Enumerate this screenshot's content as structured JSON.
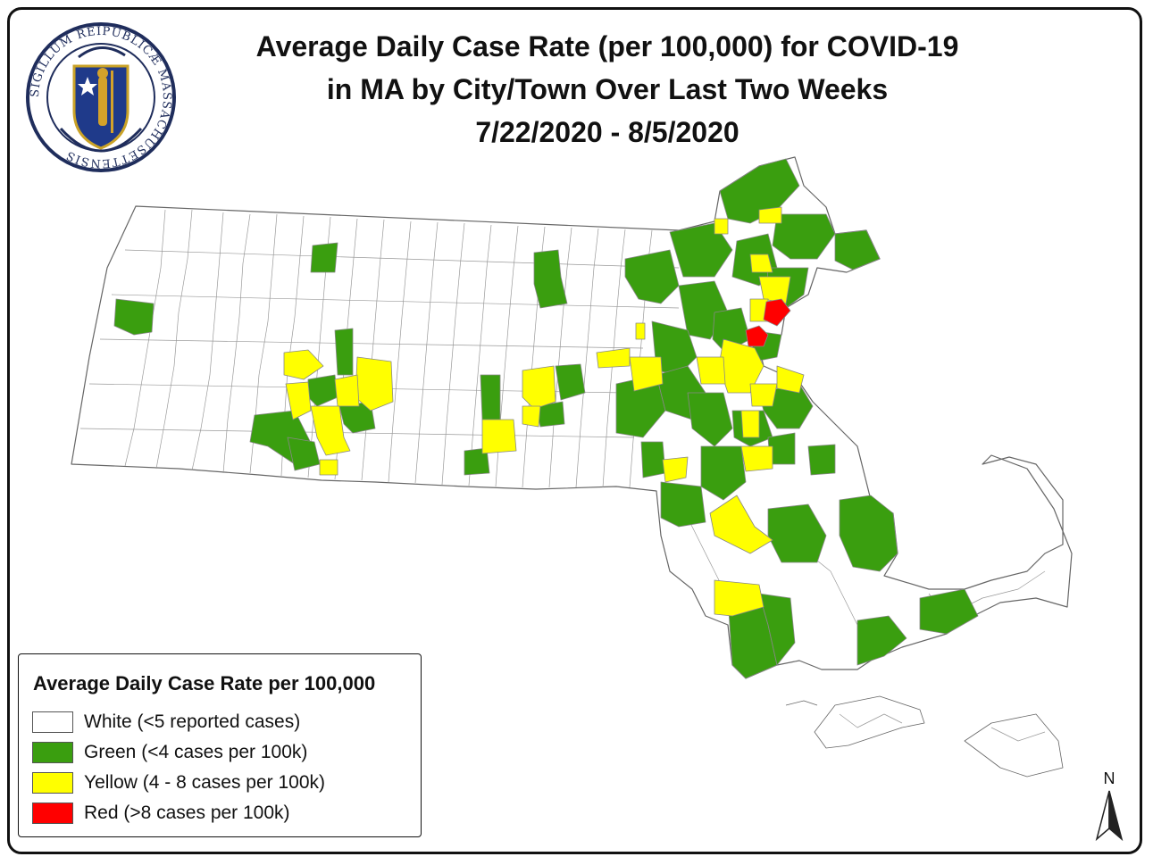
{
  "title": {
    "line1": "Average Daily Case Rate (per 100,000) for COVID-19",
    "line2": "in MA by City/Town Over Last Two Weeks",
    "line3": "7/22/2020 - 8/5/2020"
  },
  "seal": {
    "icon": "massachusetts-seal-icon",
    "text": "SIGILLUM REIPUBLICÆ MASSACHUSETTENSIS"
  },
  "legend": {
    "title": "Average Daily Case Rate per 100,000",
    "items": [
      {
        "label": "White (<5 reported cases)",
        "color": "#ffffff"
      },
      {
        "label": "Green (<4 cases per 100k)",
        "color": "#3a9e0f"
      },
      {
        "label": "Yellow (4 - 8 cases per 100k)",
        "color": "#ffff00"
      },
      {
        "label": "Red (>8 cases per 100k)",
        "color": "#ff0000"
      }
    ]
  },
  "north_arrow": {
    "label": "N",
    "icon": "north-arrow-icon"
  },
  "colors": {
    "green": "#3a9e0f",
    "yellow": "#ffff00",
    "red": "#ff0000",
    "white": "#ffffff",
    "border": "#888888"
  }
}
